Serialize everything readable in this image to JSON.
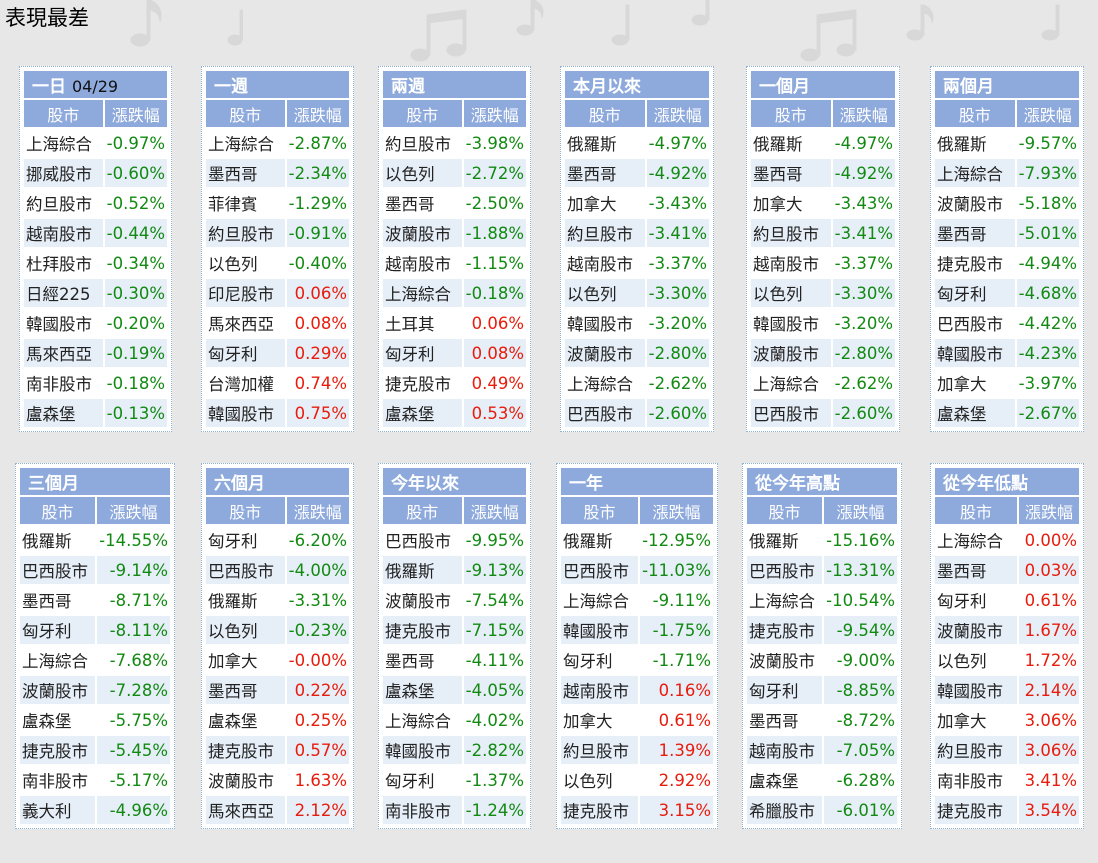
{
  "page_title": "表現最差",
  "colors": {
    "header_bg": "#8ea9dc",
    "row_alt": "#e6eef8",
    "negative": "#128a12",
    "positive": "#e81c0c"
  },
  "panels": [
    {
      "title": "一日",
      "date": "04/29",
      "col_name": "股市",
      "col_change": "漲跌幅",
      "rows": [
        {
          "name": "上海綜合",
          "change": "-0.97%"
        },
        {
          "name": "挪威股市",
          "change": "-0.60%"
        },
        {
          "name": "約旦股市",
          "change": "-0.52%"
        },
        {
          "name": "越南股市",
          "change": "-0.44%"
        },
        {
          "name": "杜拜股市",
          "change": "-0.34%"
        },
        {
          "name": "日經225",
          "change": "-0.30%"
        },
        {
          "name": "韓國股市",
          "change": "-0.20%"
        },
        {
          "name": "馬來西亞",
          "change": "-0.19%"
        },
        {
          "name": "南非股市",
          "change": "-0.18%"
        },
        {
          "name": "盧森堡",
          "change": "-0.13%"
        }
      ]
    },
    {
      "title": "一週",
      "col_name": "股市",
      "col_change": "漲跌幅",
      "rows": [
        {
          "name": "上海綜合",
          "change": "-2.87%"
        },
        {
          "name": "墨西哥",
          "change": "-2.34%"
        },
        {
          "name": "菲律賓",
          "change": "-1.29%"
        },
        {
          "name": "約旦股市",
          "change": "-0.91%"
        },
        {
          "name": "以色列",
          "change": "-0.40%"
        },
        {
          "name": "印尼股市",
          "change": "0.06%"
        },
        {
          "name": "馬來西亞",
          "change": "0.08%"
        },
        {
          "name": "匈牙利",
          "change": "0.29%"
        },
        {
          "name": "台灣加權",
          "change": "0.74%"
        },
        {
          "name": "韓國股市",
          "change": "0.75%"
        }
      ]
    },
    {
      "title": "兩週",
      "col_name": "股市",
      "col_change": "漲跌幅",
      "rows": [
        {
          "name": "約旦股市",
          "change": "-3.98%"
        },
        {
          "name": "以色列",
          "change": "-2.72%"
        },
        {
          "name": "墨西哥",
          "change": "-2.50%"
        },
        {
          "name": "波蘭股市",
          "change": "-1.88%"
        },
        {
          "name": "越南股市",
          "change": "-1.15%"
        },
        {
          "name": "上海綜合",
          "change": "-0.18%"
        },
        {
          "name": "土耳其",
          "change": "0.06%"
        },
        {
          "name": "匈牙利",
          "change": "0.08%"
        },
        {
          "name": "捷克股市",
          "change": "0.49%"
        },
        {
          "name": "盧森堡",
          "change": "0.53%"
        }
      ]
    },
    {
      "title": "本月以來",
      "col_name": "股市",
      "col_change": "漲跌幅",
      "rows": [
        {
          "name": "俄羅斯",
          "change": "-4.97%"
        },
        {
          "name": "墨西哥",
          "change": "-4.92%"
        },
        {
          "name": "加拿大",
          "change": "-3.43%"
        },
        {
          "name": "約旦股市",
          "change": "-3.41%"
        },
        {
          "name": "越南股市",
          "change": "-3.37%"
        },
        {
          "name": "以色列",
          "change": "-3.30%"
        },
        {
          "name": "韓國股市",
          "change": "-3.20%"
        },
        {
          "name": "波蘭股市",
          "change": "-2.80%"
        },
        {
          "name": "上海綜合",
          "change": "-2.62%"
        },
        {
          "name": "巴西股市",
          "change": "-2.60%"
        }
      ]
    },
    {
      "title": "一個月",
      "col_name": "股市",
      "col_change": "漲跌幅",
      "rows": [
        {
          "name": "俄羅斯",
          "change": "-4.97%"
        },
        {
          "name": "墨西哥",
          "change": "-4.92%"
        },
        {
          "name": "加拿大",
          "change": "-3.43%"
        },
        {
          "name": "約旦股市",
          "change": "-3.41%"
        },
        {
          "name": "越南股市",
          "change": "-3.37%"
        },
        {
          "name": "以色列",
          "change": "-3.30%"
        },
        {
          "name": "韓國股市",
          "change": "-3.20%"
        },
        {
          "name": "波蘭股市",
          "change": "-2.80%"
        },
        {
          "name": "上海綜合",
          "change": "-2.62%"
        },
        {
          "name": "巴西股市",
          "change": "-2.60%"
        }
      ]
    },
    {
      "title": "兩個月",
      "col_name": "股市",
      "col_change": "漲跌幅",
      "rows": [
        {
          "name": "俄羅斯",
          "change": "-9.57%"
        },
        {
          "name": "上海綜合",
          "change": "-7.93%"
        },
        {
          "name": "波蘭股市",
          "change": "-5.18%"
        },
        {
          "name": "墨西哥",
          "change": "-5.01%"
        },
        {
          "name": "捷克股市",
          "change": "-4.94%"
        },
        {
          "name": "匈牙利",
          "change": "-4.68%"
        },
        {
          "name": "巴西股市",
          "change": "-4.42%"
        },
        {
          "name": "韓國股市",
          "change": "-4.23%"
        },
        {
          "name": "加拿大",
          "change": "-3.97%"
        },
        {
          "name": "盧森堡",
          "change": "-2.67%"
        }
      ]
    },
    {
      "title": "三個月",
      "col_name": "股市",
      "col_change": "漲跌幅",
      "rows": [
        {
          "name": "俄羅斯",
          "change": "-14.55%"
        },
        {
          "name": "巴西股市",
          "change": "-9.14%"
        },
        {
          "name": "墨西哥",
          "change": "-8.71%"
        },
        {
          "name": "匈牙利",
          "change": "-8.11%"
        },
        {
          "name": "上海綜合",
          "change": "-7.68%"
        },
        {
          "name": "波蘭股市",
          "change": "-7.28%"
        },
        {
          "name": "盧森堡",
          "change": "-5.75%"
        },
        {
          "name": "捷克股市",
          "change": "-5.45%"
        },
        {
          "name": "南非股市",
          "change": "-5.17%"
        },
        {
          "name": "義大利",
          "change": "-4.96%"
        }
      ]
    },
    {
      "title": "六個月",
      "col_name": "股市",
      "col_change": "漲跌幅",
      "rows": [
        {
          "name": "匈牙利",
          "change": "-6.20%"
        },
        {
          "name": "巴西股市",
          "change": "-4.00%"
        },
        {
          "name": "俄羅斯",
          "change": "-3.31%"
        },
        {
          "name": "以色列",
          "change": "-0.23%"
        },
        {
          "name": "加拿大",
          "change": "-0.00%",
          "sign": "pos"
        },
        {
          "name": "墨西哥",
          "change": "0.22%"
        },
        {
          "name": "盧森堡",
          "change": "0.25%"
        },
        {
          "name": "捷克股市",
          "change": "0.57%"
        },
        {
          "name": "波蘭股市",
          "change": "1.63%"
        },
        {
          "name": "馬來西亞",
          "change": "2.12%"
        }
      ]
    },
    {
      "title": "今年以來",
      "col_name": "股市",
      "col_change": "漲跌幅",
      "rows": [
        {
          "name": "巴西股市",
          "change": "-9.95%"
        },
        {
          "name": "俄羅斯",
          "change": "-9.13%"
        },
        {
          "name": "波蘭股市",
          "change": "-7.54%"
        },
        {
          "name": "捷克股市",
          "change": "-7.15%"
        },
        {
          "name": "墨西哥",
          "change": "-4.11%"
        },
        {
          "name": "盧森堡",
          "change": "-4.05%"
        },
        {
          "name": "上海綜合",
          "change": "-4.02%"
        },
        {
          "name": "韓國股市",
          "change": "-2.82%"
        },
        {
          "name": "匈牙利",
          "change": "-1.37%"
        },
        {
          "name": "南非股市",
          "change": "-1.24%"
        }
      ]
    },
    {
      "title": "一年",
      "col_name": "股市",
      "col_change": "漲跌幅",
      "rows": [
        {
          "name": "俄羅斯",
          "change": "-12.95%"
        },
        {
          "name": "巴西股市",
          "change": "-11.03%"
        },
        {
          "name": "上海綜合",
          "change": "-9.11%"
        },
        {
          "name": "韓國股市",
          "change": "-1.75%"
        },
        {
          "name": "匈牙利",
          "change": "-1.71%"
        },
        {
          "name": "越南股市",
          "change": "0.16%"
        },
        {
          "name": "加拿大",
          "change": "0.61%"
        },
        {
          "name": "約旦股市",
          "change": "1.39%"
        },
        {
          "name": "以色列",
          "change": "2.92%"
        },
        {
          "name": "捷克股市",
          "change": "3.15%"
        }
      ]
    },
    {
      "title": "從今年高點",
      "col_name": "股市",
      "col_change": "漲跌幅",
      "rows": [
        {
          "name": "俄羅斯",
          "change": "-15.16%"
        },
        {
          "name": "巴西股市",
          "change": "-13.31%"
        },
        {
          "name": "上海綜合",
          "change": "-10.54%"
        },
        {
          "name": "捷克股市",
          "change": "-9.54%"
        },
        {
          "name": "波蘭股市",
          "change": "-9.00%"
        },
        {
          "name": "匈牙利",
          "change": "-8.85%"
        },
        {
          "name": "墨西哥",
          "change": "-8.72%"
        },
        {
          "name": "越南股市",
          "change": "-7.05%"
        },
        {
          "name": "盧森堡",
          "change": "-6.28%"
        },
        {
          "name": "希臘股市",
          "change": "-6.01%"
        }
      ]
    },
    {
      "title": "從今年低點",
      "col_name": "股市",
      "col_change": "漲跌幅",
      "rows": [
        {
          "name": "上海綜合",
          "change": "0.00%"
        },
        {
          "name": "墨西哥",
          "change": "0.03%"
        },
        {
          "name": "匈牙利",
          "change": "0.61%"
        },
        {
          "name": "波蘭股市",
          "change": "1.67%"
        },
        {
          "name": "以色列",
          "change": "1.72%"
        },
        {
          "name": "韓國股市",
          "change": "2.14%"
        },
        {
          "name": "加拿大",
          "change": "3.06%"
        },
        {
          "name": "約旦股市",
          "change": "3.06%"
        },
        {
          "name": "南非股市",
          "change": "3.41%"
        },
        {
          "name": "捷克股市",
          "change": "3.54%"
        }
      ]
    }
  ]
}
